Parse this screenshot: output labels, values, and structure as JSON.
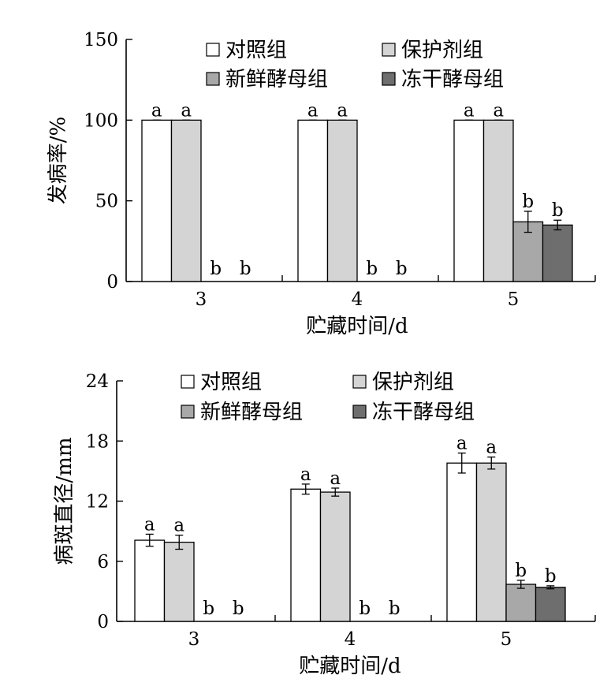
{
  "chart_data": [
    {
      "type": "bar",
      "categories": [
        "3",
        "4",
        "5"
      ],
      "series": [
        {
          "name": "对照组",
          "color": "#ffffff",
          "values": [
            100,
            100,
            100
          ],
          "errors": [
            0,
            0,
            0
          ],
          "letters": [
            "a",
            "a",
            "a"
          ]
        },
        {
          "name": "保护剂组",
          "color": "#d4d4d4",
          "values": [
            100,
            100,
            100
          ],
          "errors": [
            0,
            0,
            0
          ],
          "letters": [
            "a",
            "a",
            "a"
          ]
        },
        {
          "name": "新鲜酵母组",
          "color": "#a8a8a8",
          "values": [
            0,
            0,
            37
          ],
          "errors": [
            0,
            0,
            6.5
          ],
          "letters": [
            "b",
            "b",
            "b"
          ]
        },
        {
          "name": "冻干酵母组",
          "color": "#6e6e6e",
          "values": [
            0,
            0,
            35
          ],
          "errors": [
            0,
            0,
            3
          ],
          "letters": [
            "b",
            "b",
            "b"
          ]
        }
      ],
      "xlabel": "贮藏时间/d",
      "ylabel": "发病率/%",
      "ylim": [
        0,
        150
      ],
      "yticks": [
        "0",
        "50",
        "100",
        "150"
      ],
      "legend": "top"
    },
    {
      "type": "bar",
      "categories": [
        "3",
        "4",
        "5"
      ],
      "series": [
        {
          "name": "对照组",
          "color": "#ffffff",
          "values": [
            8.1,
            13.2,
            15.8
          ],
          "errors": [
            0.6,
            0.5,
            1.0
          ],
          "letters": [
            "a",
            "a",
            "a"
          ]
        },
        {
          "name": "保护剂组",
          "color": "#d4d4d4",
          "values": [
            7.9,
            12.9,
            15.8
          ],
          "errors": [
            0.7,
            0.4,
            0.6
          ],
          "letters": [
            "a",
            "a",
            "a"
          ]
        },
        {
          "name": "新鲜酵母组",
          "color": "#a8a8a8",
          "values": [
            0,
            0,
            3.7
          ],
          "errors": [
            0,
            0,
            0.4
          ],
          "letters": [
            "b",
            "b",
            "b"
          ]
        },
        {
          "name": "冻干酵母组",
          "color": "#6e6e6e",
          "values": [
            0,
            0,
            3.4
          ],
          "errors": [
            0,
            0,
            0.15
          ],
          "letters": [
            "b",
            "b",
            "b"
          ]
        }
      ],
      "xlabel": "贮藏时间/d",
      "ylabel": "病斑直径/mm",
      "ylim": [
        0,
        24
      ],
      "yticks": [
        "0",
        "6",
        "12",
        "18",
        "24"
      ],
      "legend": "top"
    }
  ]
}
